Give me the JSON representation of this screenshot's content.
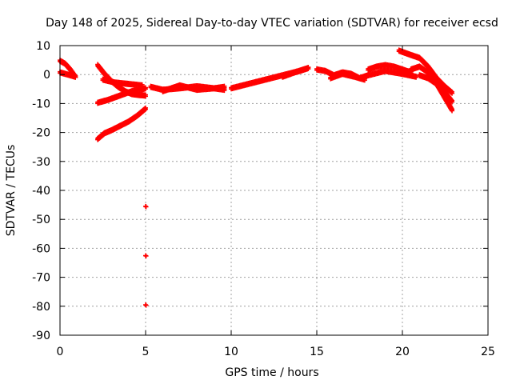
{
  "chart_data": {
    "type": "scatter",
    "title": "Day 148 of 2025, Sidereal Day-to-day VTEC variation (SDTVAR) for receiver ecsd",
    "xlabel": "GPS time / hours",
    "ylabel": "SDTVAR / TECUs",
    "xlim": [
      0,
      25
    ],
    "ylim": [
      -90,
      10
    ],
    "xticks": [
      0,
      5,
      10,
      15,
      20,
      25
    ],
    "yticks": [
      10,
      0,
      -10,
      -20,
      -30,
      -40,
      -50,
      -60,
      -70,
      -80,
      -90
    ],
    "grid": true,
    "marker": "+",
    "color": "#ff0000",
    "tracks": [
      {
        "name": "t1",
        "x": [
          0.0,
          0.3,
          0.6,
          0.9
        ],
        "y": [
          5,
          4,
          2,
          -0.5
        ]
      },
      {
        "name": "t2",
        "x": [
          0.0,
          0.3,
          0.6,
          0.9
        ],
        "y": [
          1.0,
          0.5,
          0.0,
          -0.5
        ]
      },
      {
        "name": "t3",
        "x": [
          2.2,
          2.6,
          3.0,
          3.4,
          3.8,
          4.2,
          4.6,
          5.0
        ],
        "y": [
          3.5,
          0.5,
          -2.0,
          -4.0,
          -5.5,
          -6.5,
          -6.8,
          -7.0
        ]
      },
      {
        "name": "t4",
        "x": [
          2.2,
          2.8,
          3.5,
          4.2,
          4.8,
          5.0
        ],
        "y": [
          -9.5,
          -8.5,
          -7.0,
          -5.5,
          -4.8,
          -4.5
        ]
      },
      {
        "name": "t5",
        "x": [
          2.2,
          2.6,
          3.0,
          3.5,
          4.0,
          4.5,
          5.0
        ],
        "y": [
          -22,
          -20,
          -19,
          -17.5,
          -16,
          -14,
          -11.5
        ]
      },
      {
        "name": "t6",
        "x": [
          2.5,
          3.2,
          4.0,
          4.8
        ],
        "y": [
          -1.5,
          -2.5,
          -3.0,
          -3.5
        ]
      },
      {
        "name": "t7",
        "x": [
          5.3,
          6.0,
          7.0,
          8.0,
          9.0,
          9.6
        ],
        "y": [
          -4.0,
          -5.0,
          -4.5,
          -3.8,
          -4.5,
          -5.0
        ]
      },
      {
        "name": "t8",
        "x": [
          6.0,
          7.0,
          8.0,
          9.0,
          9.6
        ],
        "y": [
          -5.5,
          -3.5,
          -5.0,
          -4.5,
          -4.0
        ]
      },
      {
        "name": "t9",
        "x": [
          10.0,
          11.0,
          12.0,
          13.0,
          14.0,
          14.5
        ],
        "y": [
          -4.5,
          -3.0,
          -1.5,
          0.0,
          1.5,
          2.5
        ]
      },
      {
        "name": "t10",
        "x": [
          13.0,
          13.7,
          14.5
        ],
        "y": [
          -0.5,
          1.0,
          2.5
        ]
      },
      {
        "name": "t11",
        "x": [
          15.0,
          15.5,
          16.0,
          16.5,
          17.0,
          17.5,
          18.0
        ],
        "y": [
          2.0,
          1.5,
          0.0,
          1.0,
          0.5,
          -1.0,
          0.0
        ]
      },
      {
        "name": "t12",
        "x": [
          15.8,
          16.5,
          17.2,
          17.8
        ],
        "y": [
          -1.0,
          0.5,
          -0.5,
          -1.5
        ]
      },
      {
        "name": "t13",
        "x": [
          18.0,
          18.5,
          19.0,
          19.5,
          20.0,
          20.5
        ],
        "y": [
          2.0,
          3.0,
          3.5,
          3.0,
          2.0,
          1.0
        ]
      },
      {
        "name": "t14",
        "x": [
          18.0,
          19.0,
          20.0,
          20.8
        ],
        "y": [
          0.0,
          1.5,
          0.5,
          -0.5
        ]
      },
      {
        "name": "t15",
        "x": [
          19.8,
          20.5,
          21.0,
          21.5,
          22.0,
          22.5,
          22.9
        ],
        "y": [
          8.5,
          7.0,
          6.0,
          3.0,
          -1.0,
          -4.0,
          -6.0
        ]
      },
      {
        "name": "t16",
        "x": [
          20.5,
          21.0,
          21.5,
          22.0,
          22.5,
          22.9
        ],
        "y": [
          2.0,
          3.0,
          1.0,
          -3.0,
          -8.0,
          -12.0
        ]
      },
      {
        "name": "t17",
        "x": [
          21.0,
          21.5,
          22.0,
          22.5,
          22.9
        ],
        "y": [
          0.0,
          -1.0,
          -3.0,
          -6.0,
          -9.0
        ]
      },
      {
        "name": "iso1",
        "x": [
          5.0
        ],
        "y": [
          -45.5
        ]
      },
      {
        "name": "iso2",
        "x": [
          5.0
        ],
        "y": [
          -62.5
        ]
      },
      {
        "name": "iso3",
        "x": [
          5.0
        ],
        "y": [
          -79.5
        ]
      }
    ]
  }
}
